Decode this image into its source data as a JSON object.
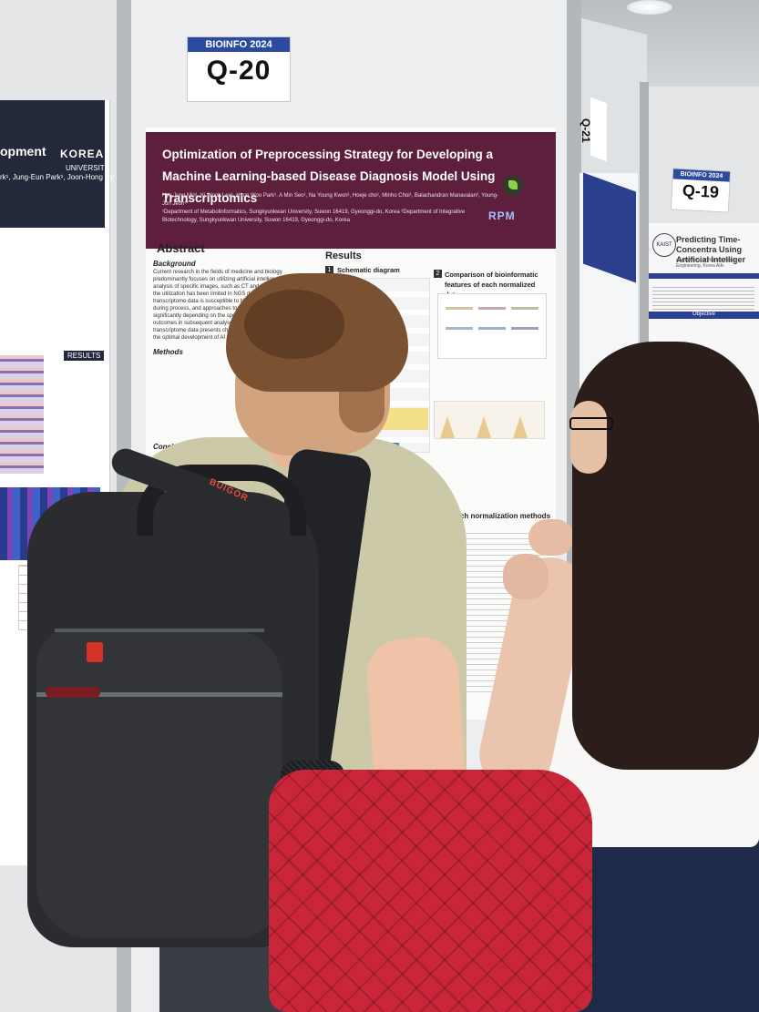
{
  "booth_signs": {
    "q20": {
      "event": "BIOINFO 2024",
      "code": "Q-20"
    },
    "q19": {
      "event": "BIOINFO 2024",
      "code": "Q-19"
    },
    "q21": {
      "code": "Q-21"
    }
  },
  "main_poster": {
    "title": "Optimization of Preprocessing Strategy for Developing a Machine Learning-based Disease Diagnosis Model Using Transcriptomics",
    "authors": "Hye Jung Min¹, Ki Wook Lee¹, Hyun Woo Park¹, A Min Seo¹, Na Young Kwon¹, Hoeje cho¹, Minho Choi¹, Balachandran Manavalan², Young-Jun Jeon¹*",
    "affiliation": "¹Department of Metabolinformatics, Sungkyunkwan University, Suwon 16419, Gyeonggi-do, Korea  ²Department of Integrative Biotechnology, Sungkyunkwan University, Suwon 16419, Gyeonggi-do, Korea",
    "logo": "RPM",
    "abstract_heading": "Abstract",
    "background_heading": "Background",
    "abstract_text": "Current research in the fields of medicine and biology predominantly focuses on utilizing artificial intelligence (AI) for the analysis of specific images, such as CT and MRI scans. However, the utilization has been limited in NGS data, in particular, transcriptome data is susceptible to biological and technical errors during process, and approaches to error correction vary significantly depending on the specific method can yield different outcomes in subsequent analyses, suggesting that the transcriptome data presents challenges in study, we aim to identify the optimal development of AI models utilizing tra",
    "methods_heading": "Methods",
    "conclusion_heading": "Conclusio",
    "results_heading": "Results",
    "section1_num": "1",
    "section1_title": "Schematic diagram",
    "section2_num": "2",
    "section2_title": "Comparison of bioinformatic features of each normalized data",
    "section_norm_title": "each normalization methods"
  },
  "left_poster": {
    "title_fragment": "opment",
    "authors_fragment": "rk¹, Jung-Eun Park¹, Joon-Hong Ky",
    "university": "KOREA",
    "university_sub": "UNIVERSITY",
    "results_tag": "RESULTS"
  },
  "right_poster": {
    "title": "Predicting Time-Concentra Using Artificial Intelliger",
    "department": "¹Department of Bio and Brain Engineering, Korea Adv",
    "institution_badge": "KAIST",
    "objective": "Objective"
  },
  "backpack": {
    "brand": "BUIGOR"
  },
  "colors": {
    "poster_header": "#5d1f3b",
    "sign_band": "#2b4aa0",
    "backpack": "#2a2c30",
    "red_bag": "#c9263a",
    "shirt": "#ccc9a8"
  }
}
